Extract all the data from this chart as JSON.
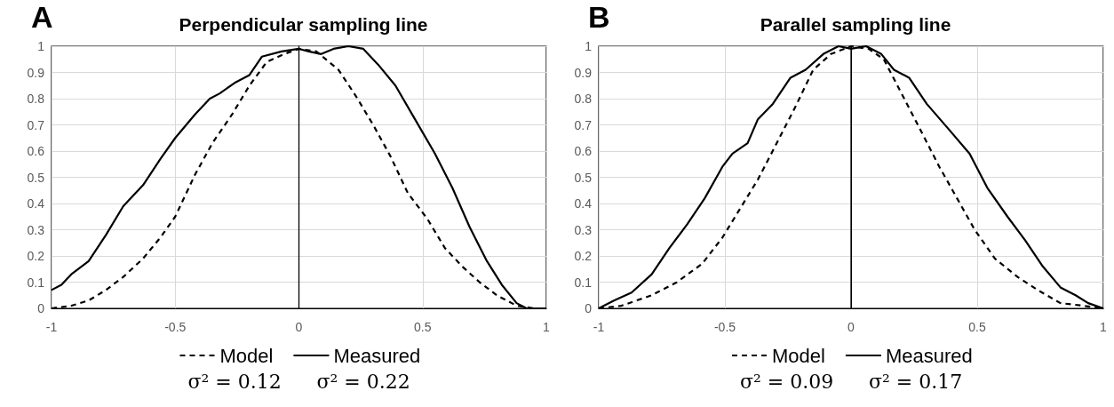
{
  "chart_data": [
    {
      "type": "line",
      "title": "Perpendicular sampling line",
      "annotations": [
        "A",
        "σ² = 0.12",
        "σ² = 0.22"
      ],
      "xlim": [
        -1,
        1
      ],
      "xticks": [
        -1,
        -0.5,
        0,
        0.5,
        1
      ],
      "ylim": [
        0,
        1
      ],
      "yticks": [
        0,
        0.1,
        0.2,
        0.3,
        0.4,
        0.5,
        0.6,
        0.7,
        0.8,
        0.9,
        1
      ],
      "grid": true,
      "legend": "bottom",
      "marker": "none",
      "ref_lines": [
        {
          "axis": "x",
          "value": 0,
          "color": "#000000"
        }
      ],
      "series": [
        {
          "name": "Model",
          "color": "#000000",
          "line_style": "dashed",
          "x": [
            -1,
            -0.92,
            -0.85,
            -0.78,
            -0.71,
            -0.63,
            -0.56,
            -0.5,
            -0.42,
            -0.35,
            -0.27,
            -0.2,
            -0.13,
            -0.06,
            0,
            0.07,
            0.16,
            0.23,
            0.3,
            0.37,
            0.44,
            0.52,
            0.59,
            0.66,
            0.73,
            0.8,
            0.88,
            0.95,
            1
          ],
          "values": [
            0,
            0.01,
            0.03,
            0.07,
            0.12,
            0.19,
            0.27,
            0.35,
            0.51,
            0.63,
            0.74,
            0.85,
            0.94,
            0.97,
            0.99,
            0.98,
            0.91,
            0.81,
            0.7,
            0.58,
            0.44,
            0.34,
            0.23,
            0.16,
            0.1,
            0.05,
            0.01,
            0,
            0
          ]
        },
        {
          "name": "Measured",
          "color": "#000000",
          "line_style": "solid",
          "x": [
            -1,
            -0.96,
            -0.92,
            -0.85,
            -0.78,
            -0.71,
            -0.63,
            -0.56,
            -0.5,
            -0.42,
            -0.36,
            -0.32,
            -0.26,
            -0.2,
            -0.15,
            -0.07,
            0,
            0.04,
            0.09,
            0.14,
            0.2,
            0.26,
            0.32,
            0.39,
            0.47,
            0.55,
            0.62,
            0.69,
            0.76,
            0.82,
            0.88,
            0.92,
            1
          ],
          "values": [
            0.07,
            0.09,
            0.13,
            0.18,
            0.28,
            0.39,
            0.47,
            0.57,
            0.65,
            0.74,
            0.8,
            0.82,
            0.86,
            0.89,
            0.96,
            0.98,
            0.99,
            0.98,
            0.97,
            0.99,
            1,
            0.99,
            0.93,
            0.85,
            0.72,
            0.59,
            0.46,
            0.31,
            0.18,
            0.09,
            0.02,
            0,
            0
          ]
        }
      ]
    },
    {
      "type": "line",
      "title": "Parallel sampling line",
      "annotations": [
        "B",
        "σ² = 0.09",
        "σ² = 0.17"
      ],
      "xlim": [
        -1,
        1
      ],
      "xticks": [
        -1,
        -0.5,
        0,
        0.5,
        1
      ],
      "ylim": [
        0,
        1
      ],
      "yticks": [
        0,
        0.1,
        0.2,
        0.3,
        0.4,
        0.5,
        0.6,
        0.7,
        0.8,
        0.9,
        1
      ],
      "grid": true,
      "legend": "bottom",
      "marker": "none",
      "ref_lines": [
        {
          "axis": "x",
          "value": 0,
          "color": "#000000"
        }
      ],
      "series": [
        {
          "name": "Model",
          "color": "#000000",
          "line_style": "dashed",
          "x": [
            -1,
            -0.91,
            -0.79,
            -0.69,
            -0.59,
            -0.51,
            -0.44,
            -0.37,
            -0.3,
            -0.22,
            -0.15,
            -0.08,
            0,
            0.07,
            0.13,
            0.2,
            0.27,
            0.35,
            0.42,
            0.49,
            0.57,
            0.66,
            0.74,
            0.83,
            0.92,
            1
          ],
          "values": [
            0,
            0.01,
            0.05,
            0.1,
            0.17,
            0.27,
            0.38,
            0.49,
            0.62,
            0.77,
            0.91,
            0.97,
            1,
            0.99,
            0.95,
            0.82,
            0.69,
            0.54,
            0.42,
            0.3,
            0.19,
            0.12,
            0.07,
            0.02,
            0.01,
            0
          ]
        },
        {
          "name": "Measured",
          "color": "#000000",
          "line_style": "solid",
          "x": [
            -1,
            -0.94,
            -0.87,
            -0.79,
            -0.72,
            -0.65,
            -0.58,
            -0.51,
            -0.47,
            -0.41,
            -0.37,
            -0.31,
            -0.24,
            -0.18,
            -0.11,
            -0.05,
            0,
            0.06,
            0.12,
            0.17,
            0.23,
            0.3,
            0.39,
            0.47,
            0.54,
            0.62,
            0.69,
            0.76,
            0.83,
            0.89,
            0.94,
            1
          ],
          "values": [
            0,
            0.03,
            0.06,
            0.13,
            0.23,
            0.32,
            0.42,
            0.54,
            0.59,
            0.63,
            0.72,
            0.78,
            0.88,
            0.91,
            0.97,
            1,
            0.99,
            1,
            0.97,
            0.91,
            0.88,
            0.78,
            0.68,
            0.59,
            0.46,
            0.35,
            0.26,
            0.16,
            0.08,
            0.05,
            0.02,
            0
          ]
        }
      ]
    }
  ]
}
